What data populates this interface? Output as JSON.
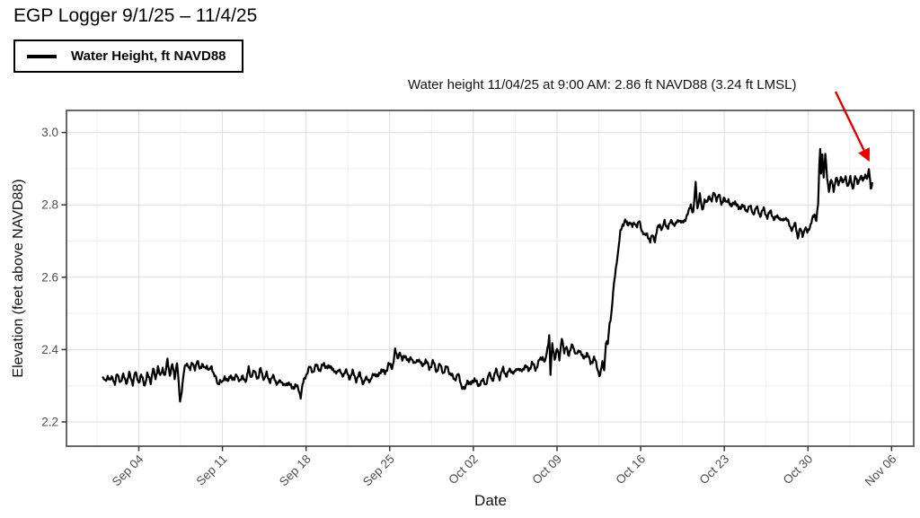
{
  "title": "EGP Logger 9/1/25 – 11/4/25",
  "legend": {
    "label": "Water Height, ft NAVD88"
  },
  "annotation": {
    "text": "Water height 11/04/25 at 9:00 AM: 2.86 ft NAVD88 (3.24 ft LMSL)",
    "arrow_color": "#e60000",
    "target": {
      "day": 64.375,
      "value": 2.86
    }
  },
  "colors": {
    "line": "#000000",
    "grid_major": "#dedede",
    "grid_minor": "#f0f0f0",
    "panel_border": "#4d4d4d",
    "tick": "#333333",
    "tick_label": "#4d4d4d"
  },
  "chart_data": {
    "type": "line",
    "title": "EGP Logger 9/1/25 – 11/4/25",
    "xlabel": "Date",
    "ylabel": "Elevation (feet above NAVD88)",
    "x_unit": "days since Sep 01 2025 00:00",
    "xlim": [
      -3.05,
      67.85
    ],
    "ylim": [
      2.133,
      3.061
    ],
    "grid": true,
    "legend_position": "top-left-outside",
    "x_ticks": [
      {
        "day": 3,
        "label": "Sep 04"
      },
      {
        "day": 10,
        "label": "Sep 11"
      },
      {
        "day": 17,
        "label": "Sep 18"
      },
      {
        "day": 24,
        "label": "Sep 25"
      },
      {
        "day": 31,
        "label": "Oct 02"
      },
      {
        "day": 38,
        "label": "Oct 09"
      },
      {
        "day": 45,
        "label": "Oct 16"
      },
      {
        "day": 52,
        "label": "Oct 23"
      },
      {
        "day": 59,
        "label": "Oct 30"
      },
      {
        "day": 66,
        "label": "Nov 06"
      }
    ],
    "y_ticks": [
      2.2,
      2.4,
      2.6,
      2.8,
      3.0
    ],
    "y_minor_ticks": [
      2.3,
      2.5,
      2.7,
      2.9
    ],
    "x_minor_offset_days": 3.5,
    "tidal_ripple": {
      "amplitude_ft": 0.005,
      "period_days": 0.52,
      "amplitude2_ft": 0.0035,
      "period2_days": 0.185
    },
    "series": [
      {
        "name": "Water Height, ft NAVD88",
        "color": "#000000",
        "points": [
          [
            0,
            2.32
          ],
          [
            0.2,
            2.31
          ],
          [
            0.4,
            2.33
          ],
          [
            0.6,
            2.312
          ],
          [
            0.8,
            2.325
          ],
          [
            1,
            2.307
          ],
          [
            1.2,
            2.33
          ],
          [
            1.5,
            2.312
          ],
          [
            1.7,
            2.327
          ],
          [
            2,
            2.31
          ],
          [
            2.2,
            2.332
          ],
          [
            2.5,
            2.308
          ],
          [
            2.7,
            2.335
          ],
          [
            3,
            2.312
          ],
          [
            3.2,
            2.327
          ],
          [
            3.5,
            2.303
          ],
          [
            3.7,
            2.33
          ],
          [
            4,
            2.312
          ],
          [
            4.2,
            2.347
          ],
          [
            4.4,
            2.317
          ],
          [
            4.6,
            2.357
          ],
          [
            4.8,
            2.322
          ],
          [
            5,
            2.35
          ],
          [
            5.2,
            2.327
          ],
          [
            5.4,
            2.37
          ],
          [
            5.6,
            2.332
          ],
          [
            5.8,
            2.357
          ],
          [
            6,
            2.322
          ],
          [
            6.2,
            2.368
          ],
          [
            6.35,
            2.302
          ],
          [
            6.45,
            2.252
          ],
          [
            6.6,
            2.29
          ],
          [
            6.75,
            2.335
          ],
          [
            6.9,
            2.352
          ],
          [
            7.1,
            2.362
          ],
          [
            7.3,
            2.345
          ],
          [
            7.5,
            2.362
          ],
          [
            7.7,
            2.35
          ],
          [
            7.9,
            2.365
          ],
          [
            8.1,
            2.35
          ],
          [
            8.3,
            2.36
          ],
          [
            8.5,
            2.345
          ],
          [
            8.7,
            2.357
          ],
          [
            8.9,
            2.34
          ],
          [
            9.1,
            2.352
          ],
          [
            9.4,
            2.325
          ],
          [
            9.6,
            2.302
          ],
          [
            9.8,
            2.317
          ],
          [
            10,
            2.305
          ],
          [
            10.2,
            2.327
          ],
          [
            10.5,
            2.31
          ],
          [
            10.7,
            2.33
          ],
          [
            11,
            2.315
          ],
          [
            11.2,
            2.332
          ],
          [
            11.5,
            2.31
          ],
          [
            11.7,
            2.327
          ],
          [
            12,
            2.312
          ],
          [
            12.2,
            2.35
          ],
          [
            12.4,
            2.325
          ],
          [
            12.7,
            2.34
          ],
          [
            13,
            2.32
          ],
          [
            13.2,
            2.347
          ],
          [
            13.5,
            2.317
          ],
          [
            13.7,
            2.332
          ],
          [
            14,
            2.312
          ],
          [
            14.3,
            2.327
          ],
          [
            14.6,
            2.302
          ],
          [
            14.9,
            2.317
          ],
          [
            15.2,
            2.297
          ],
          [
            15.5,
            2.312
          ],
          [
            15.8,
            2.292
          ],
          [
            16.1,
            2.302
          ],
          [
            16.4,
            2.287
          ],
          [
            16.55,
            2.272
          ],
          [
            16.7,
            2.3
          ],
          [
            17,
            2.332
          ],
          [
            17.3,
            2.35
          ],
          [
            17.6,
            2.34
          ],
          [
            17.9,
            2.357
          ],
          [
            18.2,
            2.342
          ],
          [
            18.5,
            2.362
          ],
          [
            18.8,
            2.347
          ],
          [
            19.1,
            2.357
          ],
          [
            19.4,
            2.332
          ],
          [
            19.7,
            2.347
          ],
          [
            20,
            2.327
          ],
          [
            20.3,
            2.342
          ],
          [
            20.6,
            2.322
          ],
          [
            20.9,
            2.337
          ],
          [
            21.2,
            2.317
          ],
          [
            21.5,
            2.332
          ],
          [
            21.8,
            2.307
          ],
          [
            22.1,
            2.322
          ],
          [
            22.4,
            2.312
          ],
          [
            22.7,
            2.337
          ],
          [
            23,
            2.322
          ],
          [
            23.3,
            2.347
          ],
          [
            23.6,
            2.332
          ],
          [
            23.9,
            2.362
          ],
          [
            24.2,
            2.347
          ],
          [
            24.45,
            2.4
          ],
          [
            24.65,
            2.372
          ],
          [
            24.85,
            2.397
          ],
          [
            25.05,
            2.367
          ],
          [
            25.3,
            2.387
          ],
          [
            25.6,
            2.362
          ],
          [
            25.8,
            2.382
          ],
          [
            26.1,
            2.357
          ],
          [
            26.4,
            2.377
          ],
          [
            26.7,
            2.352
          ],
          [
            27,
            2.372
          ],
          [
            27.3,
            2.347
          ],
          [
            27.6,
            2.367
          ],
          [
            27.9,
            2.342
          ],
          [
            28.2,
            2.357
          ],
          [
            28.5,
            2.337
          ],
          [
            28.8,
            2.352
          ],
          [
            29.1,
            2.332
          ],
          [
            29.4,
            2.317
          ],
          [
            29.7,
            2.332
          ],
          [
            30,
            2.302
          ],
          [
            30.3,
            2.287
          ],
          [
            30.5,
            2.317
          ],
          [
            30.8,
            2.302
          ],
          [
            31.1,
            2.322
          ],
          [
            31.4,
            2.297
          ],
          [
            31.7,
            2.317
          ],
          [
            32,
            2.302
          ],
          [
            32.3,
            2.332
          ],
          [
            32.6,
            2.317
          ],
          [
            32.9,
            2.342
          ],
          [
            33.2,
            2.322
          ],
          [
            33.5,
            2.347
          ],
          [
            33.8,
            2.327
          ],
          [
            34.1,
            2.347
          ],
          [
            34.4,
            2.332
          ],
          [
            34.7,
            2.352
          ],
          [
            35,
            2.337
          ],
          [
            35.3,
            2.357
          ],
          [
            35.6,
            2.342
          ],
          [
            35.9,
            2.362
          ],
          [
            36.2,
            2.347
          ],
          [
            36.5,
            2.367
          ],
          [
            36.8,
            2.382
          ],
          [
            37,
            2.362
          ],
          [
            37.2,
            2.402
          ],
          [
            37.35,
            2.442
          ],
          [
            37.45,
            2.332
          ],
          [
            37.6,
            2.412
          ],
          [
            37.8,
            2.377
          ],
          [
            38,
            2.402
          ],
          [
            38.2,
            2.372
          ],
          [
            38.4,
            2.437
          ],
          [
            38.6,
            2.387
          ],
          [
            38.8,
            2.412
          ],
          [
            39,
            2.382
          ],
          [
            39.3,
            2.417
          ],
          [
            39.6,
            2.382
          ],
          [
            39.9,
            2.402
          ],
          [
            40.2,
            2.372
          ],
          [
            40.5,
            2.392
          ],
          [
            40.8,
            2.362
          ],
          [
            41.1,
            2.377
          ],
          [
            41.4,
            2.347
          ],
          [
            41.6,
            2.327
          ],
          [
            41.8,
            2.362
          ],
          [
            41.95,
            2.348
          ],
          [
            42.1,
            2.422
          ],
          [
            42.25,
            2.412
          ],
          [
            42.4,
            2.472
          ],
          [
            42.55,
            2.502
          ],
          [
            42.7,
            2.557
          ],
          [
            42.85,
            2.602
          ],
          [
            43,
            2.647
          ],
          [
            43.15,
            2.682
          ],
          [
            43.3,
            2.722
          ],
          [
            43.5,
            2.747
          ],
          [
            43.7,
            2.757
          ],
          [
            43.9,
            2.742
          ],
          [
            44.1,
            2.757
          ],
          [
            44.3,
            2.737
          ],
          [
            44.5,
            2.752
          ],
          [
            44.7,
            2.742
          ],
          [
            44.9,
            2.752
          ],
          [
            45.1,
            2.732
          ],
          [
            45.35,
            2.712
          ],
          [
            45.55,
            2.722
          ],
          [
            45.8,
            2.697
          ],
          [
            46,
            2.717
          ],
          [
            46.2,
            2.702
          ],
          [
            46.4,
            2.732
          ],
          [
            46.6,
            2.747
          ],
          [
            46.8,
            2.732
          ],
          [
            47,
            2.752
          ],
          [
            47.3,
            2.737
          ],
          [
            47.6,
            2.757
          ],
          [
            47.9,
            2.742
          ],
          [
            48.2,
            2.762
          ],
          [
            48.5,
            2.747
          ],
          [
            48.8,
            2.767
          ],
          [
            49,
            2.777
          ],
          [
            49.2,
            2.802
          ],
          [
            49.4,
            2.777
          ],
          [
            49.6,
            2.857
          ],
          [
            49.75,
            2.792
          ],
          [
            49.95,
            2.827
          ],
          [
            50.15,
            2.782
          ],
          [
            50.35,
            2.817
          ],
          [
            50.55,
            2.802
          ],
          [
            50.75,
            2.827
          ],
          [
            50.95,
            2.812
          ],
          [
            51.15,
            2.832
          ],
          [
            51.35,
            2.817
          ],
          [
            51.55,
            2.827
          ],
          [
            51.75,
            2.802
          ],
          [
            51.95,
            2.822
          ],
          [
            52.15,
            2.802
          ],
          [
            52.35,
            2.817
          ],
          [
            52.6,
            2.792
          ],
          [
            52.9,
            2.812
          ],
          [
            53.2,
            2.787
          ],
          [
            53.5,
            2.802
          ],
          [
            53.8,
            2.782
          ],
          [
            54.1,
            2.797
          ],
          [
            54.4,
            2.777
          ],
          [
            54.7,
            2.792
          ],
          [
            55,
            2.772
          ],
          [
            55.3,
            2.787
          ],
          [
            55.6,
            2.767
          ],
          [
            55.9,
            2.782
          ],
          [
            56.2,
            2.757
          ],
          [
            56.5,
            2.772
          ],
          [
            56.8,
            2.752
          ],
          [
            57.1,
            2.767
          ],
          [
            57.4,
            2.747
          ],
          [
            57.7,
            2.732
          ],
          [
            57.95,
            2.747
          ],
          [
            58.15,
            2.712
          ],
          [
            58.35,
            2.732
          ],
          [
            58.55,
            2.717
          ],
          [
            58.75,
            2.737
          ],
          [
            58.95,
            2.722
          ],
          [
            59.15,
            2.742
          ],
          [
            59.35,
            2.757
          ],
          [
            59.55,
            2.772
          ],
          [
            59.7,
            2.762
          ],
          [
            59.85,
            2.802
          ],
          [
            59.95,
            2.902
          ],
          [
            60.02,
            2.955
          ],
          [
            60.1,
            2.887
          ],
          [
            60.2,
            2.947
          ],
          [
            60.32,
            2.872
          ],
          [
            60.45,
            2.937
          ],
          [
            60.6,
            2.877
          ],
          [
            60.75,
            2.842
          ],
          [
            60.95,
            2.867
          ],
          [
            61.15,
            2.842
          ],
          [
            61.35,
            2.877
          ],
          [
            61.55,
            2.852
          ],
          [
            61.75,
            2.882
          ],
          [
            61.95,
            2.857
          ],
          [
            62.15,
            2.877
          ],
          [
            62.35,
            2.852
          ],
          [
            62.55,
            2.872
          ],
          [
            62.75,
            2.847
          ],
          [
            62.95,
            2.877
          ],
          [
            63.15,
            2.857
          ],
          [
            63.4,
            2.882
          ],
          [
            63.6,
            2.862
          ],
          [
            63.8,
            2.887
          ],
          [
            64,
            2.872
          ],
          [
            64.1,
            2.897
          ],
          [
            64.25,
            2.847
          ],
          [
            64.375,
            2.86
          ]
        ]
      }
    ]
  }
}
